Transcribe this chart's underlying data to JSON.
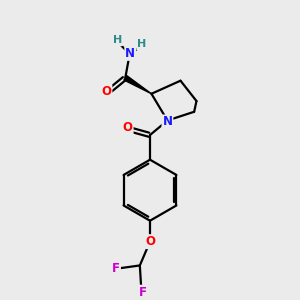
{
  "bg_color": "#ebebeb",
  "atom_colors": {
    "C": "#000000",
    "N": "#1a1aff",
    "O": "#ff0000",
    "F": "#cc00cc",
    "H": "#2e8b8b"
  },
  "bond_color": "#000000",
  "bond_width": 1.6,
  "figsize": [
    3.0,
    3.0
  ],
  "dpi": 100,
  "xlim": [
    0,
    10
  ],
  "ylim": [
    0,
    10
  ]
}
